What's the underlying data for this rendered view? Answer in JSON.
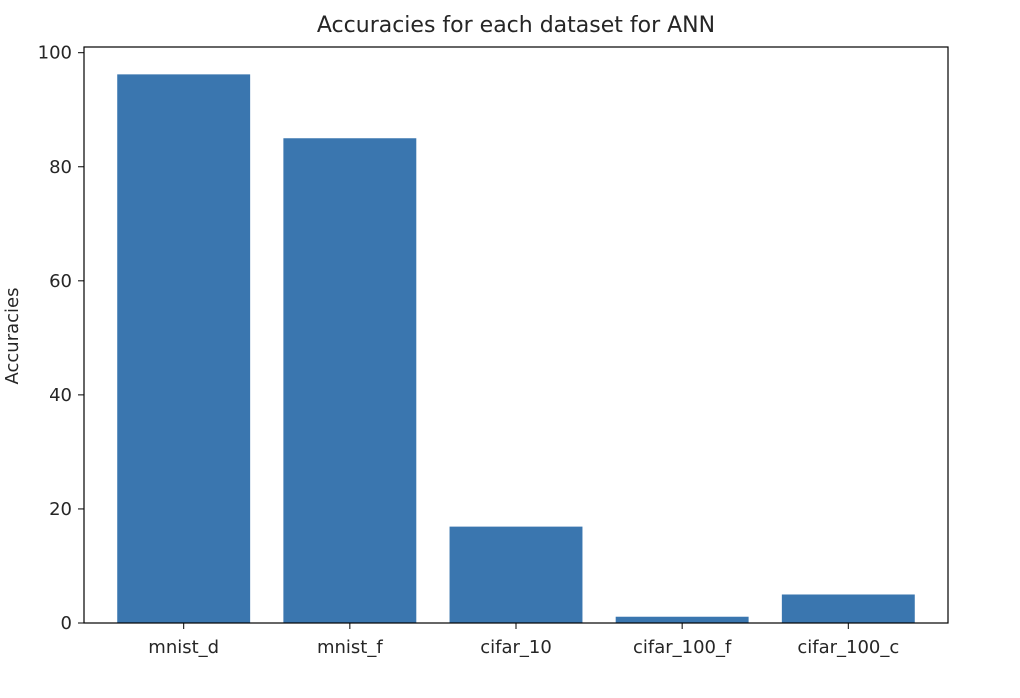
{
  "chart_data": {
    "type": "bar",
    "title": "Accuracies for each dataset for ANN",
    "xlabel": "",
    "ylabel": "Accuracies",
    "categories": [
      "mnist_d",
      "mnist_f",
      "cifar_10",
      "cifar_100_f",
      "cifar_100_c"
    ],
    "values": [
      96.2,
      85.0,
      16.9,
      1.1,
      5.0
    ],
    "ylim": [
      0,
      101
    ],
    "yticks": [
      0,
      20,
      40,
      60,
      80,
      100
    ],
    "grid": false,
    "legend": "none",
    "bar_color": "#3a76af"
  }
}
